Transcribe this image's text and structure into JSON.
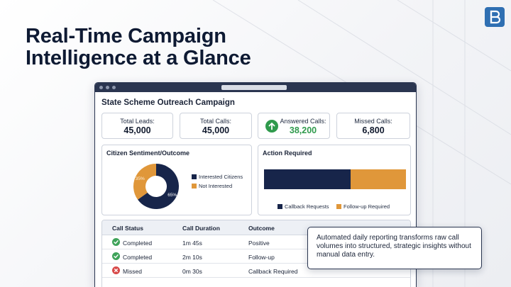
{
  "slide": {
    "headline_line1": "Real-Time Campaign",
    "headline_line2": "Intelligence at a Glance",
    "logo_icon": "brand-logo-icon",
    "accent_color": "#2a3550"
  },
  "dashboard": {
    "title": "State Scheme Outreach Campaign",
    "stats": [
      {
        "label": "Total Leads:",
        "value": "45,000"
      },
      {
        "label": "Total Calls:",
        "value": "45,000"
      },
      {
        "label": "Answered Calls:",
        "value": "38,200",
        "icon": "arrow-up-icon",
        "color": "#2f9a4c"
      },
      {
        "label": "Missed Calls:",
        "value": "6,800"
      }
    ],
    "sentiment": {
      "title": "Citizen Sentiment/Outcome",
      "legend": [
        "Interested Citizens",
        "Not Interested"
      ],
      "colors": [
        "#17254a",
        "#e0973a"
      ]
    },
    "action": {
      "title": "Action Required",
      "legend": [
        "Callback Requests",
        "Follow-up Required"
      ],
      "colors": [
        "#17254a",
        "#e0973a"
      ]
    },
    "table": {
      "headers": [
        "Call Status",
        "Call Duration",
        "Outcome"
      ],
      "rows": [
        {
          "status": "Completed",
          "duration": "1m 45s",
          "outcome": "Positive",
          "icon": "check-circle-icon"
        },
        {
          "status": "Completed",
          "duration": "2m 10s",
          "outcome": "Follow-up",
          "icon": "check-circle-icon"
        },
        {
          "status": "Missed",
          "duration": "0m 30s",
          "outcome": "Callback Required",
          "icon": "x-circle-icon"
        }
      ]
    }
  },
  "chart_data": [
    {
      "type": "pie",
      "title": "Citizen Sentiment/Outcome",
      "categories": [
        "Interested Citizens",
        "Not Interested"
      ],
      "values": [
        65,
        35
      ],
      "labels": [
        "65%",
        "35%"
      ]
    },
    {
      "type": "bar",
      "title": "Action Required",
      "categories": [
        "Callback Requests",
        "Follow-up Required"
      ],
      "values": [
        61,
        39
      ],
      "stacked": true,
      "orientation": "horizontal"
    }
  ],
  "callout": {
    "text": "Automated daily reporting transforms raw call volumes into structured, strategic insights without manual data entry."
  }
}
